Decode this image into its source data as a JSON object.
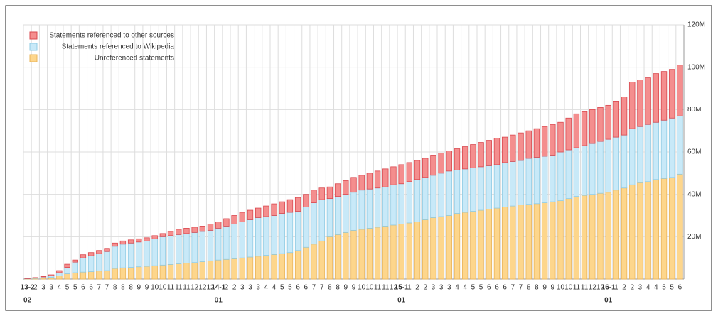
{
  "chart_data": {
    "type": "stacked_bar",
    "categories": [
      "13-2",
      "2",
      "3",
      "3",
      "4",
      "5",
      "5",
      "6",
      "6",
      "7",
      "7",
      "8",
      "8",
      "8",
      "9",
      "9",
      "10",
      "10",
      "11",
      "11",
      "11",
      "12",
      "12",
      "12",
      "14-1",
      "2",
      "2",
      "3",
      "3",
      "3",
      "4",
      "4",
      "5",
      "5",
      "6",
      "6",
      "7",
      "7",
      "8",
      "8",
      "9",
      "9",
      "10",
      "10",
      "11",
      "11",
      "12",
      "15-1",
      "1",
      "2",
      "2",
      "3",
      "3",
      "3",
      "4",
      "4",
      "5",
      "5",
      "6",
      "6",
      "6",
      "7",
      "7",
      "8",
      "8",
      "9",
      "9",
      "10",
      "10",
      "11",
      "11",
      "12",
      "12",
      "16-1",
      "1",
      "2",
      "2",
      "3",
      "4",
      "4",
      "5",
      "5",
      "6"
    ],
    "sublabels": [
      "02",
      null,
      null,
      null,
      null,
      null,
      null,
      null,
      null,
      null,
      null,
      null,
      null,
      null,
      null,
      null,
      null,
      null,
      null,
      null,
      null,
      null,
      null,
      null,
      "01",
      null,
      null,
      null,
      null,
      null,
      null,
      null,
      null,
      null,
      null,
      null,
      null,
      null,
      null,
      null,
      null,
      null,
      null,
      null,
      null,
      null,
      null,
      "01",
      null,
      null,
      null,
      null,
      null,
      null,
      null,
      null,
      null,
      null,
      null,
      null,
      null,
      null,
      null,
      null,
      null,
      null,
      null,
      null,
      null,
      null,
      null,
      null,
      null,
      "01",
      null,
      null,
      null,
      null,
      null,
      null,
      null,
      null,
      null
    ],
    "series": [
      {
        "name": "Unreferenced statements",
        "color": "#fdd68c",
        "stroke": "#e9b45a",
        "values": [
          0.1,
          0.3,
          0.5,
          0.8,
          1.5,
          2.5,
          3,
          3.3,
          3.5,
          3.8,
          4,
          5,
          5.3,
          5.5,
          5.8,
          6,
          6.3,
          6.6,
          6.9,
          7.2,
          7.5,
          7.8,
          8.2,
          8.6,
          9,
          9.3,
          9.6,
          10,
          10.4,
          10.8,
          11.2,
          11.6,
          12,
          12.5,
          13.5,
          15,
          16.5,
          18,
          20,
          21,
          22,
          23,
          23.5,
          24,
          24.5,
          25,
          25.5,
          26,
          26.5,
          27,
          28,
          29,
          29.5,
          30,
          31,
          31.5,
          32,
          32.5,
          33,
          33.5,
          34,
          34.5,
          35,
          35.3,
          35.6,
          36,
          36.5,
          37,
          38,
          39,
          39.5,
          40,
          40.5,
          41,
          42,
          43,
          44.5,
          45.5,
          46,
          47,
          47.5,
          48,
          49.5
        ]
      },
      {
        "name": "Statements referenced to Wikipedia",
        "color": "#c8e9f8",
        "stroke": "#8fcbe3",
        "values": [
          0.1,
          0.2,
          0.5,
          0.7,
          1.5,
          3,
          5,
          6.7,
          7.5,
          8.2,
          9,
          10.5,
          11.2,
          11.5,
          11.7,
          12,
          12.7,
          13.4,
          13.6,
          13.8,
          14,
          14.2,
          14.3,
          14.4,
          15,
          15.7,
          16.4,
          17,
          17.6,
          18.2,
          18.3,
          18.4,
          19,
          19,
          18.5,
          19,
          19.5,
          19.5,
          18,
          18,
          18,
          18,
          18.5,
          18.5,
          18.5,
          18.5,
          19,
          19,
          19.5,
          20,
          20,
          20,
          20.5,
          21,
          20.5,
          20.5,
          20.5,
          20.5,
          20.5,
          20.5,
          21,
          21,
          21,
          21.7,
          21.9,
          22,
          22,
          23,
          23,
          23,
          23.5,
          24,
          24.5,
          25,
          25,
          25,
          26.5,
          26.5,
          27,
          27,
          27.5,
          28,
          27.5
        ]
      },
      {
        "name": "Statements referenced to other sources",
        "color": "#f48e8e",
        "stroke": "#d9484f",
        "values": [
          0.1,
          0.2,
          0.3,
          0.5,
          1,
          1.5,
          1,
          1.5,
          1.5,
          1.5,
          1.5,
          1.5,
          1.5,
          1.5,
          1.5,
          1.5,
          1.5,
          1.5,
          2,
          2.5,
          2.5,
          2.5,
          2.5,
          3,
          3,
          3.5,
          4,
          4.5,
          4.5,
          4.5,
          5,
          5.5,
          5.5,
          6,
          6.5,
          6,
          6,
          5.5,
          5.5,
          6,
          6.5,
          7,
          7,
          7.5,
          8,
          8.5,
          8.5,
          9,
          9,
          9,
          9,
          9.5,
          9.5,
          9.5,
          10,
          10.5,
          11,
          11.5,
          12,
          12.5,
          12,
          12.5,
          13,
          13,
          13.5,
          14,
          14.5,
          14,
          15,
          16,
          16,
          16,
          16,
          16,
          17,
          18,
          22,
          22,
          22,
          23,
          23,
          23,
          24
        ]
      }
    ],
    "ylim": [
      0,
      120
    ],
    "yticks": [
      {
        "value": 20,
        "label": "20M"
      },
      {
        "value": 40,
        "label": "40M"
      },
      {
        "value": 60,
        "label": "60M"
      },
      {
        "value": 80,
        "label": "80M"
      },
      {
        "value": 100,
        "label": "100M"
      },
      {
        "value": 120,
        "label": "120M"
      }
    ],
    "grid": true,
    "legend": "top-left"
  }
}
